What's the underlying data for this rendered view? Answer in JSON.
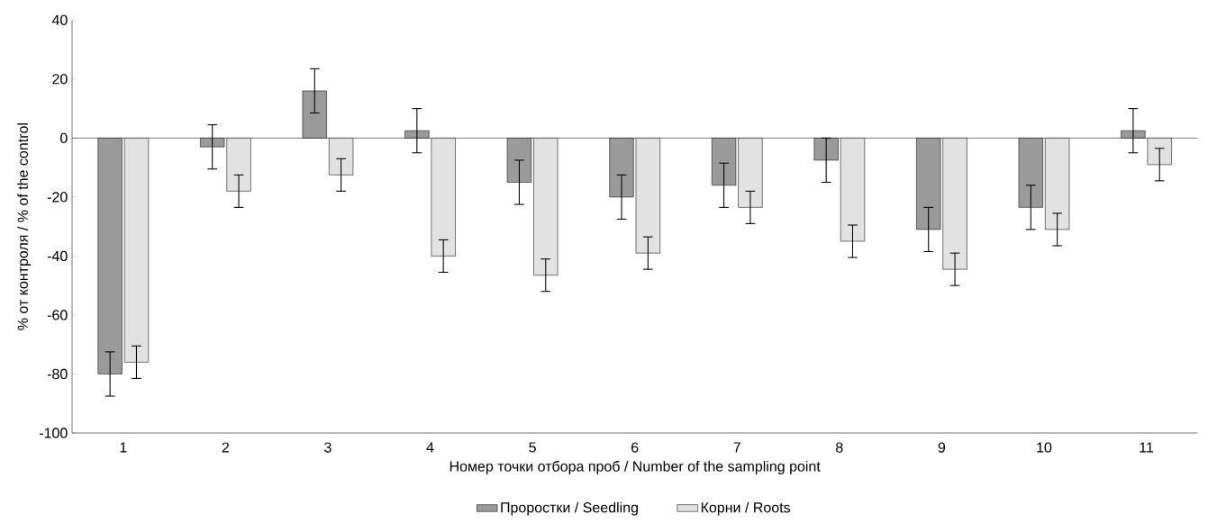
{
  "chart_data": {
    "type": "bar",
    "xlabel": "Номер точки отбора проб / Number of the sampling point",
    "ylabel": "% от контроля / % of the control",
    "categories": [
      "1",
      "2",
      "3",
      "4",
      "5",
      "6",
      "7",
      "8",
      "9",
      "10",
      "11"
    ],
    "series": [
      {
        "name": "Проростки / Seedling",
        "color": "#9a9a9a",
        "values": [
          -80,
          -3,
          16,
          2.5,
          -15,
          -20,
          -16,
          -7.5,
          -31,
          -23.5,
          2.5
        ],
        "errors": [
          7.5,
          7.5,
          7.5,
          7.5,
          7.5,
          7.5,
          7.5,
          7.5,
          7.5,
          7.5,
          7.5
        ]
      },
      {
        "name": "Корни / Roots",
        "color": "#e2e2e2",
        "values": [
          -76,
          -18,
          -12.5,
          -40,
          -46.5,
          -39,
          -23.5,
          -35,
          -44.5,
          -31,
          -9
        ],
        "errors": [
          5.5,
          5.5,
          5.5,
          5.5,
          5.5,
          5.5,
          5.5,
          5.5,
          5.5,
          5.5,
          5.5
        ]
      }
    ],
    "ylim": [
      -100,
      40
    ],
    "yticks": [
      -100,
      -80,
      -60,
      -40,
      -20,
      0,
      20,
      40
    ],
    "legend": "bottom"
  }
}
